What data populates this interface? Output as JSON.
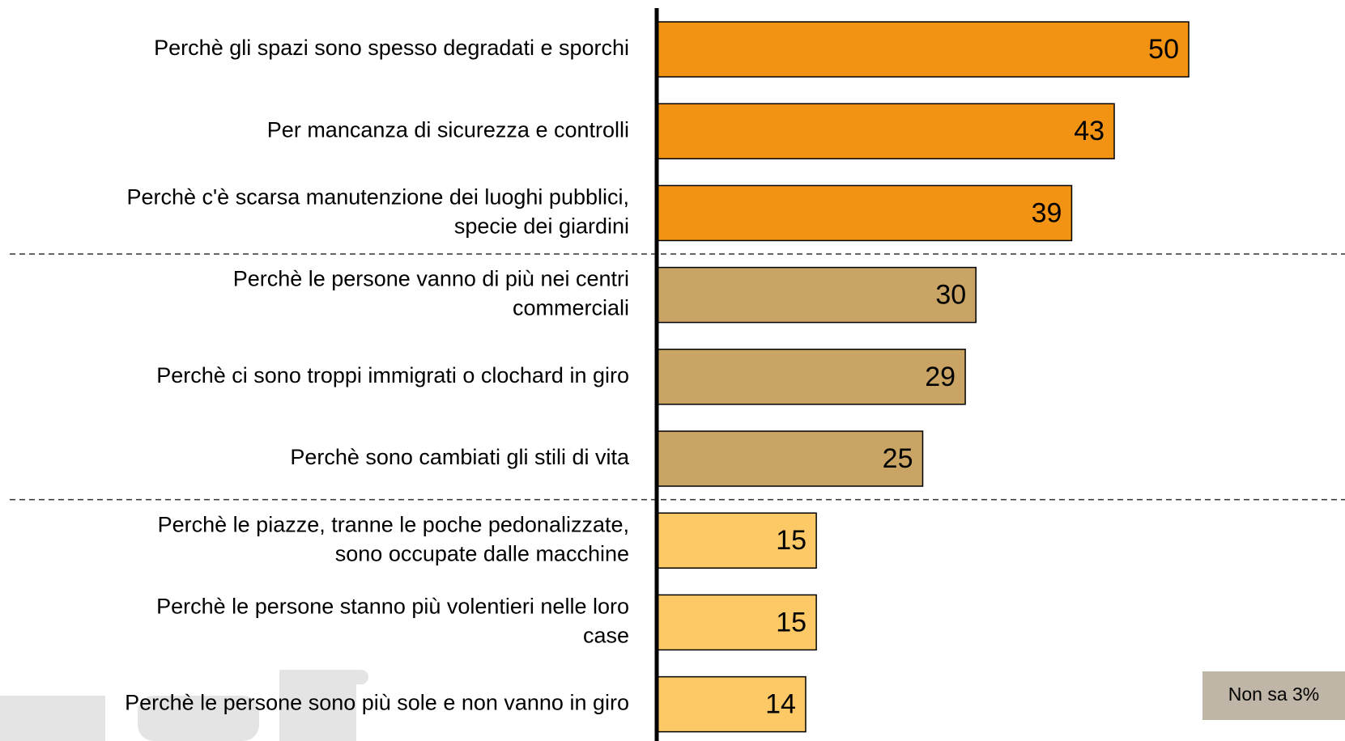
{
  "chart_data": {
    "type": "hbar",
    "categories": [
      [
        "Perchè gli spazi sono spesso degradati e sporchi"
      ],
      [
        "Per mancanza di sicurezza e controlli"
      ],
      [
        "Perchè c'è scarsa manutenzione dei luoghi pubblici,",
        "specie dei giardini"
      ],
      [
        "Perchè le persone vanno di più nei centri",
        "commerciali"
      ],
      [
        "Perchè ci sono troppi immigrati o clochard in giro"
      ],
      [
        "Perchè sono cambiati gli stili di vita"
      ],
      [
        "Perchè le piazze, tranne le poche pedonalizzate,",
        "sono occupate dalle macchine"
      ],
      [
        "Perchè le persone stanno più volentieri nelle loro",
        "case"
      ],
      [
        "Perchè le persone sono più sole e non vanno in giro"
      ]
    ],
    "values": [
      50,
      43,
      39,
      30,
      29,
      25,
      15,
      15,
      14
    ],
    "colors": [
      "#f39314",
      "#f39314",
      "#f39314",
      "#c9a464",
      "#c9a464",
      "#c9a464",
      "#fcc966",
      "#fcc966",
      "#fcc966"
    ],
    "annotation": "Non sa 3%"
  }
}
